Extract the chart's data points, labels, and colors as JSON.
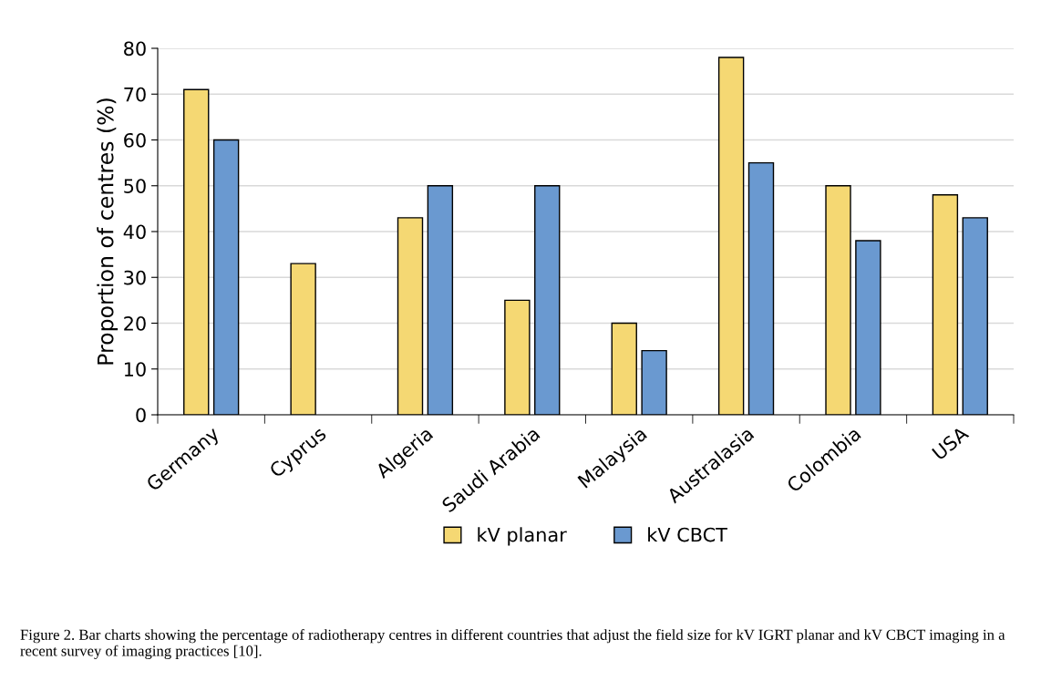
{
  "chart_data": {
    "type": "bar",
    "ylabel": "Proportion of centres (%)",
    "categories": [
      "Germany",
      "Cyprus",
      "Algeria",
      "Saudi Arabia",
      "Malaysia",
      "Australasia",
      "Colombia",
      "USA"
    ],
    "series": [
      {
        "name": "kV planar",
        "color": "#f5d873",
        "values": [
          71,
          33,
          43,
          25,
          20,
          78,
          50,
          48
        ]
      },
      {
        "name": "kV CBCT",
        "color": "#6a99d0",
        "values": [
          60,
          null,
          50,
          50,
          14,
          55,
          38,
          43
        ]
      }
    ],
    "ylim": [
      0,
      80
    ],
    "yticks": [
      0,
      10,
      20,
      30,
      40,
      50,
      60,
      70,
      80
    ],
    "grid": "y",
    "legend": "bottom",
    "annotations": [
      "Figure 2. Bar charts showing the percentage of radiotherapy centres in different countries that adjust the field size for kV IGRT planar and kV CBCT imaging in a recent survey of imaging practices [10]."
    ]
  }
}
